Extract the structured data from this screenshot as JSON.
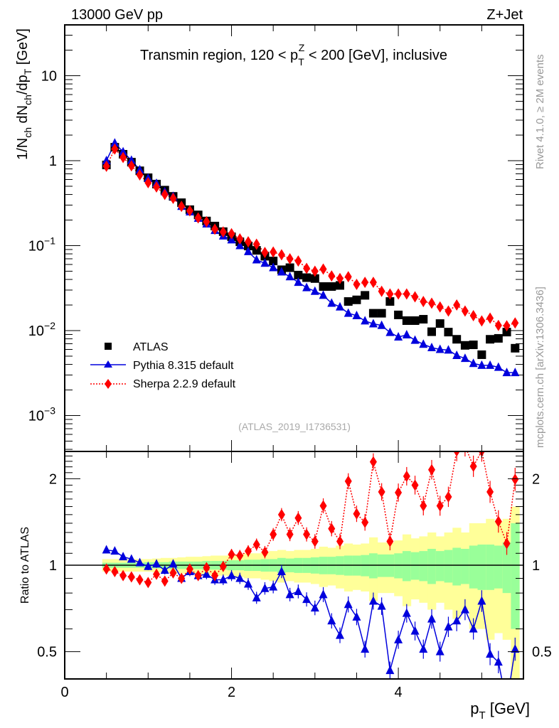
{
  "header": {
    "left": "13000 GeV pp",
    "right": "Z+Jet"
  },
  "side_labels": {
    "rivet": "Rivet 4.1.0, ≥ 2M events",
    "mcplots": "mcplots.cern.ch [arXiv:1306.3436]"
  },
  "chart_data": [
    {
      "type": "scatter",
      "title": "Transmin region, 120 < p_T^Z < 200 [GeV], inclusive",
      "title_parts": {
        "pre": "Transmin region, 120 < p",
        "sup": "Z",
        "sub": "T",
        "post": " < 200 [GeV], inclusive"
      },
      "ylabel": "1/N_ch dN_ch/dp_T [GeV]",
      "ylabel_parts": {
        "a": "1/N",
        "a_sub": "ch",
        "b": " dN",
        "b_sub": "ch",
        "c": "/dp",
        "c_sub": "T",
        "d": " [GeV]"
      },
      "xlabel": "p_T [GeV]",
      "yscale": "log",
      "ylim": [
        0.00035,
        45
      ],
      "xlim": [
        0,
        5.5
      ],
      "yticks": [
        {
          "v": 10,
          "base": "10",
          "exp": ""
        },
        {
          "v": 1,
          "base": "1",
          "exp": ""
        },
        {
          "v": 0.1,
          "base": "10",
          "exp": "−1"
        },
        {
          "v": 0.01,
          "base": "10",
          "exp": "−2"
        },
        {
          "v": 0.001,
          "base": "10",
          "exp": "−3"
        }
      ],
      "reference_label": "(ATLAS_2019_I1736531)",
      "legend": {
        "position": "bottom-left",
        "entries": [
          "ATLAS",
          "Pythia 8.315 default",
          "Sherpa 2.2.9 default"
        ]
      },
      "x": [
        0.5,
        0.6,
        0.7,
        0.8,
        0.9,
        1.0,
        1.1,
        1.2,
        1.3,
        1.4,
        1.5,
        1.6,
        1.7,
        1.8,
        1.9,
        2.0,
        2.1,
        2.2,
        2.3,
        2.4,
        2.5,
        2.6,
        2.7,
        2.8,
        2.9,
        3.0,
        3.1,
        3.2,
        3.3,
        3.4,
        3.5,
        3.6,
        3.7,
        3.8,
        3.9,
        4.0,
        4.1,
        4.2,
        4.3,
        4.4,
        4.5,
        4.6,
        4.7,
        4.8,
        4.9,
        5.0,
        5.1,
        5.2,
        5.3,
        5.4
      ],
      "series": [
        {
          "name": "ATLAS",
          "color": "#000000",
          "marker": "square",
          "values": [
            0.89,
            1.44,
            1.19,
            0.96,
            0.76,
            0.63,
            0.53,
            0.45,
            0.38,
            0.32,
            0.265,
            0.23,
            0.195,
            0.17,
            0.146,
            0.127,
            0.111,
            0.099,
            0.088,
            0.075,
            0.066,
            0.052,
            0.055,
            0.045,
            0.042,
            0.041,
            0.033,
            0.033,
            0.034,
            0.022,
            0.023,
            0.026,
            0.016,
            0.016,
            0.022,
            0.0153,
            0.0131,
            0.0131,
            0.0136,
            0.0097,
            0.0121,
            0.0096,
            0.0079,
            0.0067,
            0.0068,
            0.0052,
            0.0079,
            0.0081,
            0.0096,
            0.0062
          ]
        },
        {
          "name": "Pythia 8.315 default",
          "color": "#0000dd",
          "marker": "triangle",
          "line": "solid",
          "values": [
            1.0,
            1.61,
            1.27,
            1.01,
            0.78,
            0.62,
            0.54,
            0.43,
            0.38,
            0.29,
            0.25,
            0.21,
            0.18,
            0.151,
            0.13,
            0.117,
            0.1,
            0.085,
            0.068,
            0.062,
            0.055,
            0.049,
            0.043,
            0.037,
            0.032,
            0.029,
            0.026,
            0.021,
            0.019,
            0.016,
            0.015,
            0.013,
            0.012,
            0.0115,
            0.0095,
            0.0084,
            0.0089,
            0.0077,
            0.0069,
            0.0063,
            0.006,
            0.0059,
            0.0051,
            0.0047,
            0.0041,
            0.0039,
            0.0039,
            0.0037,
            0.0032,
            0.0032
          ]
        },
        {
          "name": "Sherpa 2.2.9 default",
          "color": "#ff0000",
          "marker": "diamond",
          "line": "dotted",
          "values": [
            0.86,
            1.37,
            1.09,
            0.87,
            0.68,
            0.55,
            0.49,
            0.4,
            0.36,
            0.29,
            0.257,
            0.212,
            0.191,
            0.156,
            0.145,
            0.138,
            0.12,
            0.111,
            0.104,
            0.083,
            0.084,
            0.078,
            0.07,
            0.066,
            0.054,
            0.05,
            0.053,
            0.044,
            0.041,
            0.043,
            0.035,
            0.037,
            0.037,
            0.029,
            0.027,
            0.027,
            0.027,
            0.025,
            0.022,
            0.021,
            0.019,
            0.017,
            0.02,
            0.017,
            0.015,
            0.013,
            0.014,
            0.0115,
            0.0114,
            0.0123
          ]
        }
      ]
    },
    {
      "type": "scatter",
      "ylabel": "Ratio to ATLAS",
      "xlabel": "p_T [GeV]",
      "yscale": "log",
      "ylim": [
        0.42,
        2.4
      ],
      "xlim": [
        0,
        5.5
      ],
      "yticks": [
        {
          "v": 0.5,
          "label": "0.5"
        },
        {
          "v": 1,
          "label": "1"
        },
        {
          "v": 2,
          "label": "2"
        }
      ],
      "xticks": [
        {
          "v": 0,
          "label": "0"
        },
        {
          "v": 2,
          "label": "2"
        },
        {
          "v": 4,
          "label": "4"
        }
      ],
      "x": [
        0.5,
        0.6,
        0.7,
        0.8,
        0.9,
        1.0,
        1.1,
        1.2,
        1.3,
        1.4,
        1.5,
        1.6,
        1.7,
        1.8,
        1.9,
        2.0,
        2.1,
        2.2,
        2.3,
        2.4,
        2.5,
        2.6,
        2.7,
        2.8,
        2.9,
        3.0,
        3.1,
        3.2,
        3.3,
        3.4,
        3.5,
        3.6,
        3.7,
        3.8,
        3.9,
        4.0,
        4.1,
        4.2,
        4.3,
        4.4,
        4.5,
        4.6,
        4.7,
        4.8,
        4.9,
        5.0,
        5.1,
        5.2,
        5.3,
        5.4
      ],
      "bands": {
        "total_color": "#ffff99",
        "stat_color": "#99ff99",
        "total_halfwidth": [
          0.05,
          0.05,
          0.05,
          0.05,
          0.05,
          0.05,
          0.055,
          0.06,
          0.06,
          0.065,
          0.07,
          0.07,
          0.075,
          0.08,
          0.08,
          0.085,
          0.09,
          0.1,
          0.1,
          0.11,
          0.12,
          0.13,
          0.12,
          0.13,
          0.13,
          0.14,
          0.16,
          0.15,
          0.17,
          0.19,
          0.18,
          0.19,
          0.25,
          0.2,
          0.2,
          0.22,
          0.28,
          0.24,
          0.26,
          0.3,
          0.26,
          0.3,
          0.35,
          0.3,
          0.4,
          0.4,
          0.45,
          0.42,
          0.45,
          0.6
        ],
        "stat_halfwidth": [
          0.02,
          0.02,
          0.02,
          0.02,
          0.02,
          0.025,
          0.025,
          0.025,
          0.03,
          0.03,
          0.03,
          0.03,
          0.035,
          0.035,
          0.035,
          0.04,
          0.04,
          0.045,
          0.045,
          0.05,
          0.05,
          0.06,
          0.055,
          0.06,
          0.06,
          0.065,
          0.07,
          0.07,
          0.075,
          0.08,
          0.08,
          0.085,
          0.1,
          0.09,
          0.09,
          0.1,
          0.12,
          0.11,
          0.12,
          0.14,
          0.12,
          0.13,
          0.15,
          0.14,
          0.17,
          0.18,
          0.18,
          0.17,
          0.2,
          0.4
        ]
      },
      "series": [
        {
          "name": "Pythia 8.315 default",
          "color": "#0000dd",
          "marker": "triangle",
          "line": "solid",
          "values": [
            1.13,
            1.12,
            1.07,
            1.05,
            1.02,
            0.99,
            1.01,
            0.96,
            1.01,
            0.9,
            0.95,
            0.92,
            0.93,
            0.89,
            0.89,
            0.92,
            0.9,
            0.86,
            0.77,
            0.83,
            0.84,
            0.95,
            0.79,
            0.81,
            0.76,
            0.71,
            0.79,
            0.64,
            0.57,
            0.73,
            0.66,
            0.51,
            0.75,
            0.72,
            0.43,
            0.55,
            0.68,
            0.59,
            0.51,
            0.65,
            0.5,
            0.61,
            0.64,
            0.7,
            0.6,
            0.75,
            0.49,
            0.46,
            0.33,
            0.51
          ]
        },
        {
          "name": "Sherpa 2.2.9 default",
          "color": "#ff0000",
          "marker": "diamond",
          "line": "dotted",
          "values": [
            0.97,
            0.95,
            0.92,
            0.91,
            0.89,
            0.87,
            0.93,
            0.88,
            0.94,
            0.9,
            0.97,
            0.92,
            0.98,
            0.92,
            0.99,
            1.09,
            1.08,
            1.12,
            1.18,
            1.11,
            1.28,
            1.5,
            1.28,
            1.46,
            1.28,
            1.21,
            1.61,
            1.34,
            1.21,
            1.96,
            1.51,
            1.41,
            2.29,
            1.8,
            1.21,
            1.79,
            2.04,
            1.9,
            1.61,
            2.15,
            1.61,
            1.73,
            2.5,
            2.6,
            2.21,
            2.5,
            1.8,
            1.42,
            1.19,
            1.99
          ]
        }
      ]
    }
  ]
}
